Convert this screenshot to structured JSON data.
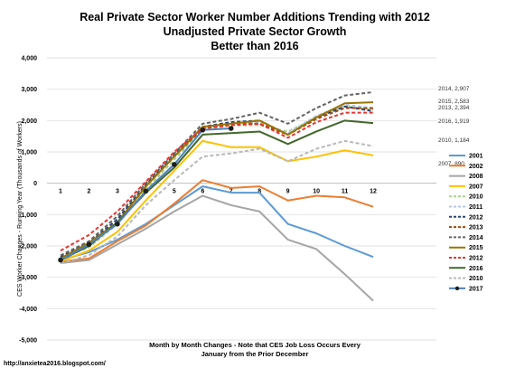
{
  "chart_data": {
    "type": "line",
    "title_lines": [
      "Real Private Sector Worker Number Additions Trending with 2012",
      "Unadjusted Private Sector Growth",
      "Better than 2016"
    ],
    "ylabel": "CES Worker Changes - Running Year (Thousands of Workers)",
    "xlabel_lines": [
      "Month by Month Changes - Note that CES Job Loss Occurs Every",
      "January from the Prior December"
    ],
    "x": [
      1,
      2,
      3,
      4,
      5,
      6,
      7,
      8,
      9,
      10,
      11,
      12
    ],
    "ylim": [
      -5000,
      4000
    ],
    "yticks": [
      -5000,
      -4000,
      -3000,
      -2000,
      -1000,
      0,
      1000,
      2000,
      3000,
      4000
    ],
    "ytick_labels": [
      "-5,000",
      "-4,000",
      "-3,000",
      "-2,000",
      "-1,000",
      "0",
      "1,000",
      "2,000",
      "3,000",
      "4,000"
    ],
    "grid": "horizontal",
    "legend_position": "right",
    "series": [
      {
        "name": "2001",
        "color": "#5b9bd5",
        "dash": "solid",
        "marker": false,
        "values": [
          -2450,
          -2200,
          -1800,
          -1300,
          -700,
          -100,
          -300,
          -300,
          -1300,
          -1600,
          -2000,
          -2350
        ]
      },
      {
        "name": "2002",
        "color": "#ed7d31",
        "dash": "solid",
        "marker": false,
        "values": [
          -2500,
          -2400,
          -1850,
          -1350,
          -650,
          100,
          -150,
          -100,
          -550,
          -400,
          -450,
          -750
        ]
      },
      {
        "name": "2008",
        "color": "#a5a5a5",
        "dash": "solid",
        "marker": false,
        "values": [
          -2550,
          -2450,
          -1950,
          -1450,
          -900,
          -400,
          -700,
          -900,
          -1800,
          -2100,
          -2900,
          -3750
        ]
      },
      {
        "name": "2007",
        "color": "#ffc000",
        "dash": "solid",
        "marker": false,
        "values": [
          -2500,
          -2150,
          -1550,
          -550,
          400,
          1350,
          1150,
          1150,
          700,
          850,
          1050,
          890
        ]
      },
      {
        "name": "2010",
        "color": "#a9d18e",
        "dash": "dash",
        "marker": false,
        "values": [
          -2400,
          -2050,
          -1300,
          -200,
          750,
          1700,
          1850,
          1850,
          1650,
          2100,
          2450,
          2350
        ]
      },
      {
        "name": "2011",
        "color": "#b4c7e7",
        "dash": "dash",
        "marker": false,
        "values": [
          -2350,
          -1950,
          -1200,
          -100,
          850,
          1750,
          1900,
          1950,
          1600,
          2150,
          2500,
          2400
        ]
      },
      {
        "name": "2012",
        "color": "#264478",
        "dash": "dash",
        "marker": false,
        "values": [
          -2350,
          -1900,
          -1150,
          -50,
          900,
          1800,
          1950,
          2000,
          1550,
          2100,
          2450,
          2300
        ]
      },
      {
        "name": "2013",
        "color": "#9e480e",
        "dash": "dash",
        "marker": false,
        "values": [
          -2400,
          -1950,
          -1250,
          -100,
          850,
          1750,
          1900,
          1900,
          1550,
          2050,
          2400,
          2394
        ]
      },
      {
        "name": "2014",
        "color": "#636363",
        "dash": "dash",
        "marker": false,
        "values": [
          -2300,
          -1850,
          -1050,
          0,
          950,
          1900,
          2050,
          2250,
          1900,
          2400,
          2800,
          2907
        ]
      },
      {
        "name": "2015",
        "color": "#997300",
        "dash": "solid",
        "marker": false,
        "values": [
          -2400,
          -1900,
          -1250,
          -100,
          850,
          1800,
          1900,
          2000,
          1550,
          2100,
          2550,
          2583
        ]
      },
      {
        "name": "2012",
        "color": "#e8342e",
        "dash": "dash",
        "marker": false,
        "values": [
          -2150,
          -1650,
          -900,
          50,
          1000,
          1750,
          1850,
          1900,
          1450,
          1950,
          2250,
          2250
        ]
      },
      {
        "name": "2016",
        "color": "#43682b",
        "dash": "solid",
        "marker": false,
        "values": [
          -2450,
          -2000,
          -1250,
          -300,
          500,
          1550,
          1600,
          1650,
          1250,
          1650,
          2000,
          1919
        ]
      },
      {
        "name": "2010",
        "color": "#b8b8b8",
        "dash": "dash",
        "marker": false,
        "values": [
          -2550,
          -2300,
          -1700,
          -700,
          100,
          850,
          950,
          1100,
          700,
          1100,
          1350,
          1184
        ]
      },
      {
        "name": "2017",
        "color": "#4f81bd",
        "dash": "solid",
        "marker": true,
        "values": [
          -2450,
          -1950,
          -1300,
          -250,
          600,
          1700,
          1750,
          null,
          null,
          null,
          null,
          null
        ]
      }
    ],
    "annotations": [
      {
        "text": "2014, 2,907",
        "x": 12,
        "y": 2907
      },
      {
        "text": "2015, 2,583",
        "x": 12,
        "y": 2583
      },
      {
        "text": "2013, 2,394",
        "x": 12,
        "y": 2394
      },
      {
        "text": "2016, 1,919",
        "x": 12,
        "y": 1919
      },
      {
        "text": "2010, 1,184",
        "x": 12,
        "y": 1184
      },
      {
        "text": "2007, 890",
        "x": 12,
        "y": 890
      }
    ],
    "source": "http://anxietea2016.blogspot.com/"
  }
}
